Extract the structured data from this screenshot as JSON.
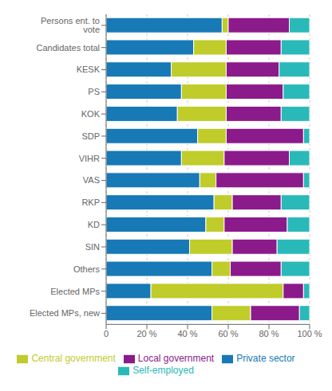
{
  "chart_data": {
    "type": "bar",
    "orientation": "horizontal",
    "stacked": true,
    "categories": [
      "Persons ent. to vote",
      "Candidates total",
      "KESK",
      "PS",
      "KOK",
      "SDP",
      "VIHR",
      "VAS",
      "RKP",
      "KD",
      "SIN",
      "Others",
      "Elected MPs",
      "Elected MPs, new"
    ],
    "series": [
      {
        "name": "Private sector",
        "color": "#1779B5",
        "values": [
          57,
          43,
          32,
          37,
          35,
          45,
          37,
          46,
          53,
          49,
          41,
          52,
          22,
          52
        ]
      },
      {
        "name": "Central government",
        "color": "#BFCC2A",
        "values": [
          3,
          16,
          27,
          22,
          24,
          14,
          21,
          8,
          9,
          9,
          21,
          9,
          65,
          19
        ]
      },
      {
        "name": "Local government",
        "color": "#8B1A8B",
        "values": [
          30,
          27,
          26,
          28,
          27,
          38,
          32,
          43,
          24,
          31,
          22,
          25,
          10,
          24
        ]
      },
      {
        "name": "Self-employed",
        "color": "#29B9B9",
        "values": [
          10,
          14,
          15,
          13,
          14,
          3,
          10,
          3,
          14,
          11,
          16,
          14,
          3,
          5
        ]
      }
    ],
    "xlim": [
      0,
      100
    ],
    "xticks": [
      0,
      {
        "value": 20,
        "label": "20 %"
      },
      {
        "value": 40,
        "label": "40 %"
      },
      {
        "value": 60,
        "label": "60 %"
      },
      {
        "value": 80,
        "label": "80 %"
      },
      {
        "value": 100,
        "label": "100 %"
      }
    ],
    "grid": true,
    "legend": "bottom"
  }
}
